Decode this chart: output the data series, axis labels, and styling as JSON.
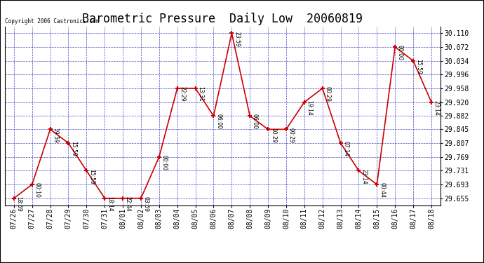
{
  "title": "Barometric Pressure  Daily Low  20060819",
  "copyright": "Copyright 2006 Castronics.com",
  "x_labels": [
    "07/26",
    "07/27",
    "07/28",
    "07/29",
    "07/30",
    "07/31",
    "08/01",
    "08/02",
    "08/03",
    "08/04",
    "08/05",
    "08/06",
    "08/07",
    "08/08",
    "08/09",
    "08/10",
    "08/11",
    "08/12",
    "08/13",
    "08/14",
    "08/15",
    "08/16",
    "08/17",
    "08/18"
  ],
  "y_ticks": [
    29.655,
    29.693,
    29.731,
    29.769,
    29.807,
    29.845,
    29.882,
    29.92,
    29.958,
    29.996,
    30.034,
    30.072,
    30.11
  ],
  "data_values": [
    29.655,
    29.693,
    29.845,
    29.807,
    29.731,
    29.655,
    29.655,
    29.655,
    29.769,
    29.958,
    29.958,
    29.882,
    30.11,
    29.882,
    29.845,
    29.845,
    29.92,
    29.958,
    29.807,
    29.731,
    29.693,
    30.072,
    30.034,
    29.92
  ],
  "data_labels": [
    "18:59",
    "00:10",
    "19:59",
    "15:59",
    "15:59",
    "18:14",
    "22:44",
    "03:59",
    "00:00",
    "22:29",
    "13:31",
    "06:00",
    "23:59",
    "06:00",
    "10:29",
    "00:29",
    "19:14",
    "00:29",
    "07:14",
    "23:14",
    "00:44",
    "00:00",
    "15:59",
    "23:14"
  ],
  "line_color": "#CC0000",
  "background_color": "#FFFFFF",
  "grid_color": "#3333CC",
  "title_fontsize": 12,
  "tick_fontsize": 7,
  "label_fontsize": 5.5,
  "ylim_low": 29.636,
  "ylim_high": 30.129,
  "figwidth": 6.9,
  "figheight": 3.75,
  "dpi": 100
}
